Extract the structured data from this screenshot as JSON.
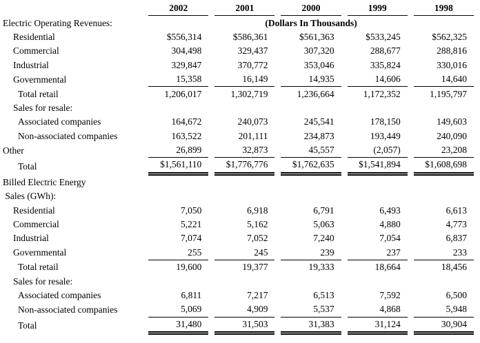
{
  "page": {
    "background_color": "#ffffff",
    "text_color": "#000000"
  },
  "table": {
    "years": [
      "2002",
      "2001",
      "2000",
      "1999",
      "1998"
    ],
    "units_note": "(Dollars In Thousands)",
    "rows": [
      {
        "label": "Electric Operating Revenues:",
        "indent": 0,
        "note": true
      },
      {
        "label": "Residential",
        "indent": 1,
        "values": [
          "$556,314",
          "$586,361",
          "$561,363",
          "$533,245",
          "$562,325"
        ]
      },
      {
        "label": "Commercial",
        "indent": 1,
        "values": [
          "304,498",
          "329,437",
          "307,320",
          "288,677",
          "288,816"
        ]
      },
      {
        "label": "Industrial",
        "indent": 1,
        "values": [
          "329,847",
          "370,772",
          "353,046",
          "335,824",
          "330,016"
        ]
      },
      {
        "label": "Governmental",
        "indent": 1,
        "values": [
          "15,358",
          "16,149",
          "14,935",
          "14,606",
          "14,640"
        ],
        "rule": "single"
      },
      {
        "label": "Total retail",
        "indent": 2,
        "values": [
          "1,206,017",
          "1,302,719",
          "1,236,664",
          "1,172,352",
          "1,195,797"
        ]
      },
      {
        "label": "Sales for resale:",
        "indent": 1,
        "values": [
          "",
          "",
          "",
          "",
          ""
        ]
      },
      {
        "label": "Associated companies",
        "indent": 2,
        "values": [
          "164,672",
          "240,073",
          "245,541",
          "178,150",
          "149,603"
        ]
      },
      {
        "label": "Non-associated companies",
        "indent": 2,
        "values": [
          "163,522",
          "201,111",
          "234,873",
          "193,449",
          "240,090"
        ]
      },
      {
        "label": "Other",
        "indent": 0,
        "values": [
          "26,899",
          "32,873",
          "45,557",
          "(2,057)",
          "23,208"
        ],
        "rule": "single"
      },
      {
        "label": "Total",
        "indent": 2,
        "values": [
          "$1,561,110",
          "$1,776,776",
          "$1,762,635",
          "$1,541,894",
          "$1,608,698"
        ],
        "rule": "double",
        "total": true
      },
      {
        "label": "Billed Electric Energy",
        "indent": 0,
        "values": [
          "",
          "",
          "",
          "",
          ""
        ]
      },
      {
        "label": " Sales (GWh):",
        "indent": 0,
        "values": [
          "",
          "",
          "",
          "",
          ""
        ]
      },
      {
        "label": "Residential",
        "indent": 1,
        "values": [
          "7,050",
          "6,918",
          "6,791",
          "6,493",
          "6,613"
        ]
      },
      {
        "label": "Commercial",
        "indent": 1,
        "values": [
          "5,221",
          "5,162",
          "5,063",
          "4,880",
          "4,773"
        ]
      },
      {
        "label": "Industrial",
        "indent": 1,
        "values": [
          "7,074",
          "7,052",
          "7,240",
          "7,054",
          "6,837"
        ]
      },
      {
        "label": "Governmental",
        "indent": 1,
        "values": [
          "255",
          "245",
          "239",
          "237",
          "233"
        ],
        "rule": "single"
      },
      {
        "label": "Total retail",
        "indent": 2,
        "values": [
          "19,600",
          "19,377",
          "19,333",
          "18,664",
          "18,456"
        ]
      },
      {
        "label": "Sales for resale:",
        "indent": 1,
        "values": [
          "",
          "",
          "",
          "",
          ""
        ]
      },
      {
        "label": "Associated companies",
        "indent": 2,
        "values": [
          "6,811",
          "7,217",
          "6,513",
          "7,592",
          "6,500"
        ]
      },
      {
        "label": "Non-associated companies",
        "indent": 2,
        "values": [
          "5,069",
          "4,909",
          "5,537",
          "4,868",
          "5,948"
        ],
        "rule": "single"
      },
      {
        "label": "Total",
        "indent": 2,
        "values": [
          "31,480",
          "31,503",
          "31,383",
          "31,124",
          "30,904"
        ],
        "rule": "double",
        "total": true
      }
    ]
  }
}
